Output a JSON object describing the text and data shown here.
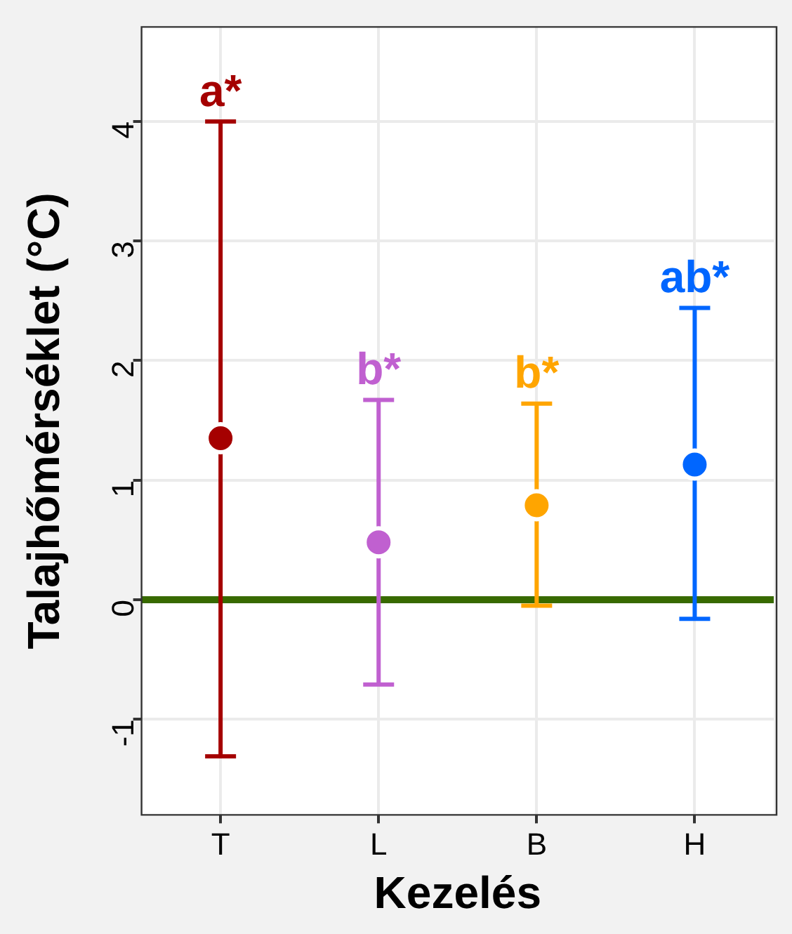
{
  "chart_data": {
    "type": "scatter",
    "xlabel": "Kezelés",
    "ylabel": "Talajhőmérséklet (°C)",
    "categories": [
      "T",
      "L",
      "B",
      "H"
    ],
    "values": [
      1.35,
      0.48,
      0.79,
      1.13
    ],
    "colors": [
      "#a50000",
      "#c060d0",
      "#ffa500",
      "#0066ff"
    ],
    "errors": [
      [
        -1.31,
        4.0
      ],
      [
        -0.71,
        1.67
      ],
      [
        -0.05,
        1.64
      ],
      [
        -0.16,
        2.44
      ]
    ],
    "marker": "circle",
    "ylim": [
      -1.8,
      4.79
    ],
    "yticks": [
      -1,
      0,
      1,
      2,
      3,
      4
    ],
    "grid": true,
    "legend": false,
    "ref_lines": [
      {
        "axis": "y",
        "value": 0,
        "color": "#386a00"
      }
    ],
    "annotations": [
      {
        "text": "a*",
        "x": "T",
        "y": 4.0
      },
      {
        "text": "b*",
        "x": "L",
        "y": 1.67
      },
      {
        "text": "b*",
        "x": "B",
        "y": 1.64
      },
      {
        "text": "ab*",
        "x": "H",
        "y": 2.44
      }
    ]
  }
}
